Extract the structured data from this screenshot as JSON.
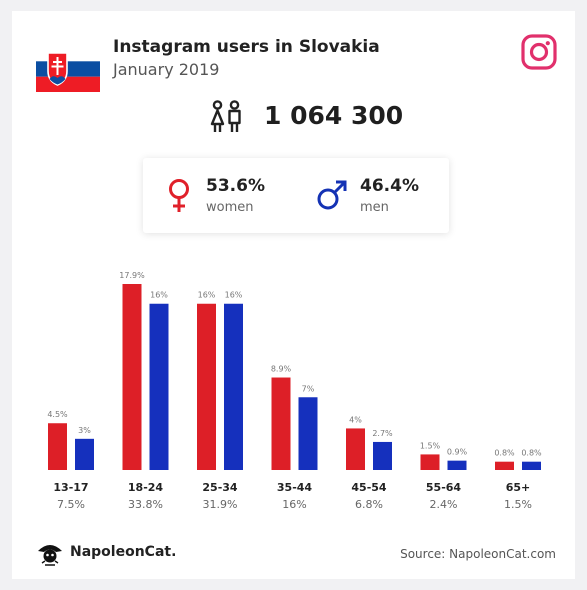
{
  "header": {
    "title": "Instagram users in Slovakia",
    "subtitle": "January 2019",
    "flag_icon": "slovakia-flag-icon",
    "brand_icon": "instagram-icon"
  },
  "summary": {
    "total_users": "1 064 300",
    "users_icon": "users-icon"
  },
  "gender": {
    "women": {
      "pct": "53.6%",
      "label": "women",
      "icon": "female-icon",
      "color": "#e0202a"
    },
    "men": {
      "pct": "46.4%",
      "label": "men",
      "icon": "male-icon",
      "color": "#1432b4"
    }
  },
  "chart_data": {
    "type": "bar",
    "categories": [
      "13-17",
      "18-24",
      "25-34",
      "35-44",
      "45-54",
      "55-64",
      "65+"
    ],
    "category_totals": [
      "7.5%",
      "33.8%",
      "31.9%",
      "16%",
      "6.8%",
      "2.4%",
      "1.5%"
    ],
    "series": [
      {
        "name": "women",
        "color": "#dd1f27",
        "values": [
          4.5,
          17.9,
          16,
          8.9,
          4,
          1.5,
          0.8
        ],
        "labels": [
          "4.5%",
          "17.9%",
          "16%",
          "8.9%",
          "4%",
          "1.5%",
          "0.8%"
        ]
      },
      {
        "name": "men",
        "color": "#1530bd",
        "values": [
          3,
          16,
          16,
          7,
          2.7,
          0.9,
          0.8
        ],
        "labels": [
          "3%",
          "16%",
          "16%",
          "7%",
          "2.7%",
          "0.9%",
          "0.8%"
        ]
      }
    ],
    "ylim": [
      0,
      17.9
    ],
    "grid": false,
    "legend": "none"
  },
  "footer": {
    "brand": "NapoleonCat.",
    "brand_icon": "napoleoncat-logo-icon",
    "source": "Source: NapoleonCat.com"
  }
}
